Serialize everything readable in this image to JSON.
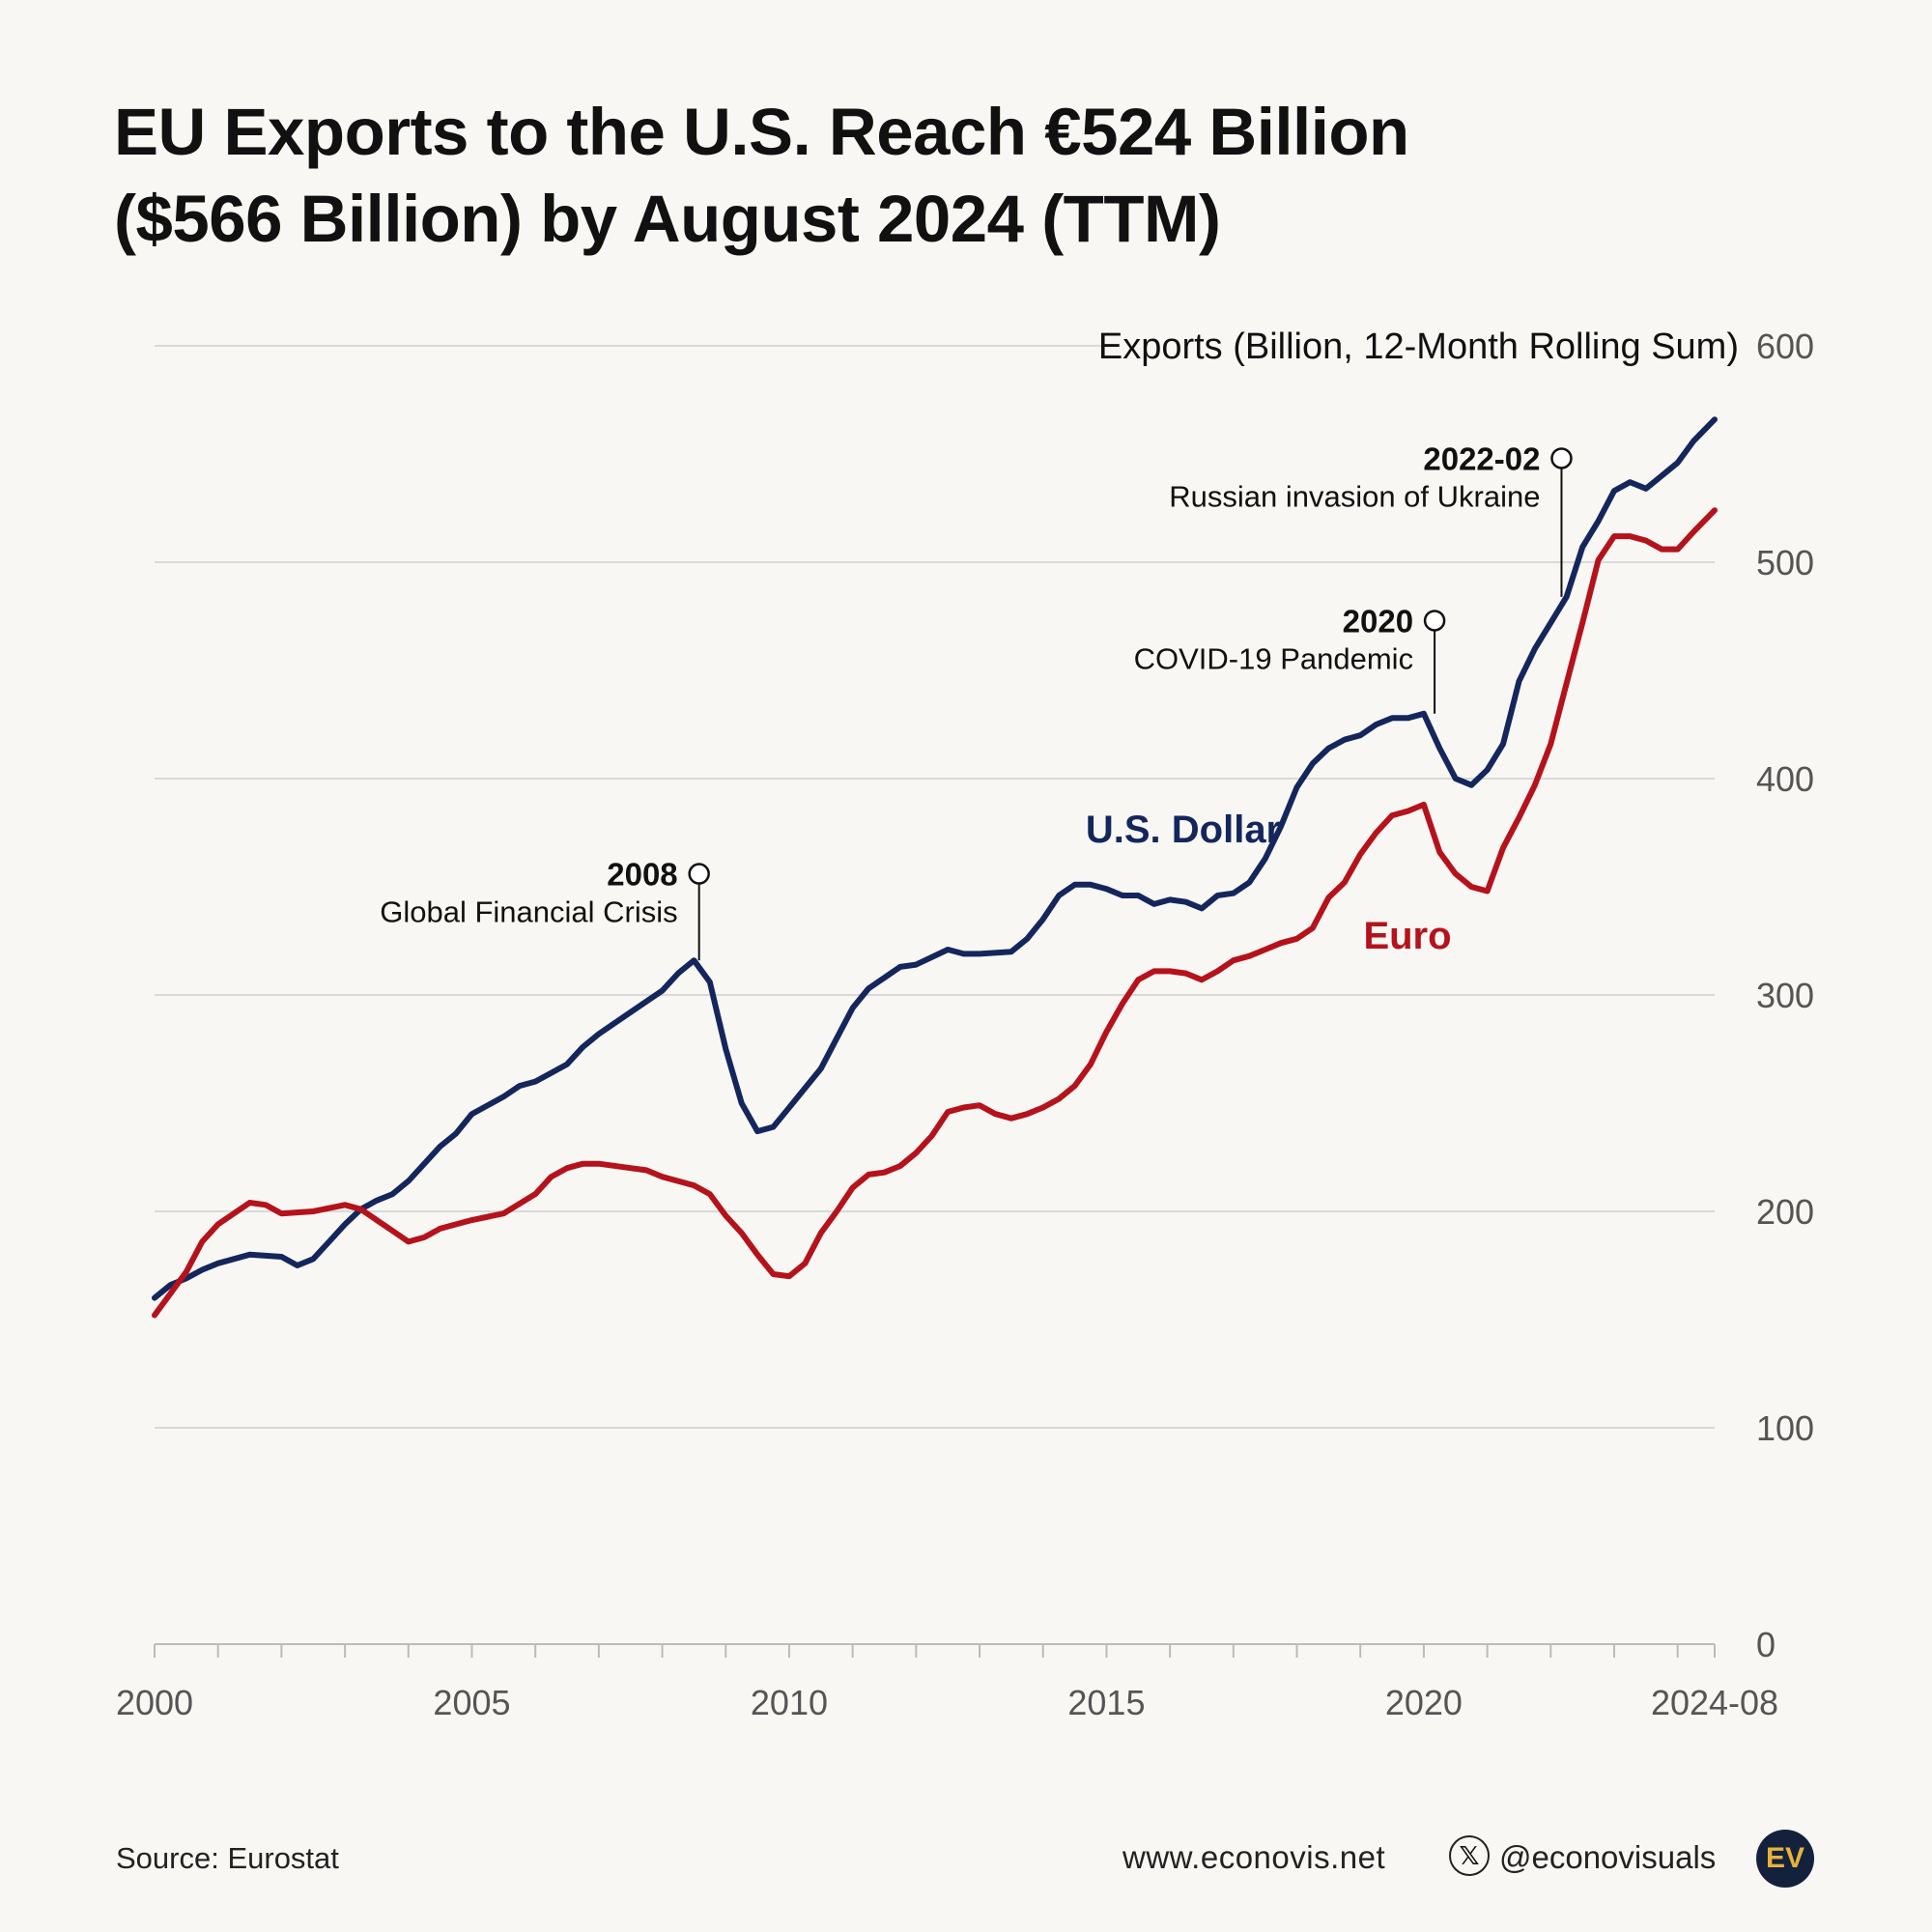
{
  "title_lines": [
    "EU Exports to the U.S. Reach €524 Billion",
    "($566 Billion) by August 2024 (TTM)"
  ],
  "footer": {
    "source": "Source: Eurostat",
    "website": "www.econovis.net",
    "x_icon": "x-logo-icon",
    "x_glyph": "𝕏",
    "handle": "@econovisuals",
    "logo_text": "EV"
  },
  "colors": {
    "usd": "#14265c",
    "eur": "#b5121b",
    "grid": "#d9d9d9",
    "axis": "#bbbbbb",
    "tick_label": "#555555",
    "background": "#f8f7f4",
    "logo_bg": "#14213d",
    "logo_fg": "#e8b23a"
  },
  "chart_data": {
    "type": "line",
    "ylabel": "Exports (Billion, 12-Month Rolling Sum)",
    "ylim": [
      0,
      600
    ],
    "yticks": [
      0,
      100,
      200,
      300,
      400,
      500,
      600
    ],
    "xlim": [
      2000.0,
      2024.583
    ],
    "xticks": [
      {
        "value": 2000,
        "label": "2000"
      },
      {
        "value": 2005,
        "label": "2005"
      },
      {
        "value": 2010,
        "label": "2010"
      },
      {
        "value": 2015,
        "label": "2015"
      },
      {
        "value": 2020,
        "label": "2020"
      },
      {
        "value": 2024.583,
        "label": "2024-08"
      }
    ],
    "minor_xticks": [
      2001,
      2002,
      2003,
      2004,
      2006,
      2007,
      2008,
      2009,
      2011,
      2012,
      2013,
      2014,
      2016,
      2017,
      2018,
      2019,
      2021,
      2022,
      2023,
      2024
    ],
    "series": [
      {
        "name": "U.S. Dollar",
        "key": "usd",
        "points": [
          [
            2000.0,
            160
          ],
          [
            2000.25,
            166
          ],
          [
            2000.5,
            169
          ],
          [
            2000.75,
            173
          ],
          [
            2001.0,
            176
          ],
          [
            2001.5,
            180
          ],
          [
            2002.0,
            179
          ],
          [
            2002.25,
            175
          ],
          [
            2002.5,
            178
          ],
          [
            2002.75,
            186
          ],
          [
            2003.0,
            194
          ],
          [
            2003.25,
            201
          ],
          [
            2003.5,
            205
          ],
          [
            2003.75,
            208
          ],
          [
            2004.0,
            214
          ],
          [
            2004.5,
            230
          ],
          [
            2004.75,
            236
          ],
          [
            2005.0,
            245
          ],
          [
            2005.5,
            253
          ],
          [
            2005.75,
            258
          ],
          [
            2006.0,
            260
          ],
          [
            2006.5,
            268
          ],
          [
            2006.75,
            276
          ],
          [
            2007.0,
            282
          ],
          [
            2007.5,
            292
          ],
          [
            2008.0,
            302
          ],
          [
            2008.25,
            310
          ],
          [
            2008.5,
            316
          ],
          [
            2008.75,
            306
          ],
          [
            2009.0,
            275
          ],
          [
            2009.25,
            250
          ],
          [
            2009.5,
            237
          ],
          [
            2009.75,
            239
          ],
          [
            2010.0,
            248
          ],
          [
            2010.5,
            266
          ],
          [
            2010.75,
            280
          ],
          [
            2011.0,
            294
          ],
          [
            2011.25,
            303
          ],
          [
            2011.5,
            308
          ],
          [
            2011.75,
            313
          ],
          [
            2012.0,
            314
          ],
          [
            2012.5,
            321
          ],
          [
            2012.75,
            319
          ],
          [
            2013.0,
            319
          ],
          [
            2013.5,
            320
          ],
          [
            2013.75,
            326
          ],
          [
            2014.0,
            335
          ],
          [
            2014.25,
            346
          ],
          [
            2014.5,
            351
          ],
          [
            2014.75,
            351
          ],
          [
            2015.0,
            349
          ],
          [
            2015.25,
            346
          ],
          [
            2015.5,
            346
          ],
          [
            2015.75,
            342
          ],
          [
            2016.0,
            344
          ],
          [
            2016.25,
            343
          ],
          [
            2016.5,
            340
          ],
          [
            2016.75,
            346
          ],
          [
            2017.0,
            347
          ],
          [
            2017.25,
            352
          ],
          [
            2017.5,
            363
          ],
          [
            2017.75,
            378
          ],
          [
            2018.0,
            396
          ],
          [
            2018.25,
            407
          ],
          [
            2018.5,
            414
          ],
          [
            2018.75,
            418
          ],
          [
            2019.0,
            420
          ],
          [
            2019.25,
            425
          ],
          [
            2019.5,
            428
          ],
          [
            2019.75,
            428
          ],
          [
            2020.0,
            430
          ],
          [
            2020.25,
            414
          ],
          [
            2020.5,
            400
          ],
          [
            2020.75,
            397
          ],
          [
            2021.0,
            404
          ],
          [
            2021.25,
            416
          ],
          [
            2021.5,
            445
          ],
          [
            2021.75,
            460
          ],
          [
            2022.0,
            472
          ],
          [
            2022.25,
            484
          ],
          [
            2022.5,
            507
          ],
          [
            2022.75,
            519
          ],
          [
            2023.0,
            533
          ],
          [
            2023.25,
            537
          ],
          [
            2023.5,
            534
          ],
          [
            2023.75,
            540
          ],
          [
            2024.0,
            546
          ],
          [
            2024.25,
            556
          ],
          [
            2024.583,
            566
          ]
        ]
      },
      {
        "name": "Euro",
        "key": "eur",
        "points": [
          [
            2000.0,
            152
          ],
          [
            2000.25,
            162
          ],
          [
            2000.5,
            172
          ],
          [
            2000.75,
            186
          ],
          [
            2001.0,
            194
          ],
          [
            2001.25,
            199
          ],
          [
            2001.5,
            204
          ],
          [
            2001.75,
            203
          ],
          [
            2002.0,
            199
          ],
          [
            2002.5,
            200
          ],
          [
            2003.0,
            203
          ],
          [
            2003.25,
            201
          ],
          [
            2003.5,
            196
          ],
          [
            2003.75,
            191
          ],
          [
            2004.0,
            186
          ],
          [
            2004.25,
            188
          ],
          [
            2004.5,
            192
          ],
          [
            2004.75,
            194
          ],
          [
            2005.0,
            196
          ],
          [
            2005.5,
            199
          ],
          [
            2006.0,
            208
          ],
          [
            2006.25,
            216
          ],
          [
            2006.5,
            220
          ],
          [
            2006.75,
            222
          ],
          [
            2007.0,
            222
          ],
          [
            2007.5,
            220
          ],
          [
            2007.75,
            219
          ],
          [
            2008.0,
            216
          ],
          [
            2008.5,
            212
          ],
          [
            2008.75,
            208
          ],
          [
            2009.0,
            198
          ],
          [
            2009.25,
            190
          ],
          [
            2009.5,
            180
          ],
          [
            2009.75,
            171
          ],
          [
            2010.0,
            170
          ],
          [
            2010.25,
            176
          ],
          [
            2010.5,
            190
          ],
          [
            2010.75,
            200
          ],
          [
            2011.0,
            211
          ],
          [
            2011.25,
            217
          ],
          [
            2011.5,
            218
          ],
          [
            2011.75,
            221
          ],
          [
            2012.0,
            227
          ],
          [
            2012.25,
            235
          ],
          [
            2012.5,
            246
          ],
          [
            2012.75,
            248
          ],
          [
            2013.0,
            249
          ],
          [
            2013.25,
            245
          ],
          [
            2013.5,
            243
          ],
          [
            2013.75,
            245
          ],
          [
            2014.0,
            248
          ],
          [
            2014.25,
            252
          ],
          [
            2014.5,
            258
          ],
          [
            2014.75,
            268
          ],
          [
            2015.0,
            283
          ],
          [
            2015.25,
            296
          ],
          [
            2015.5,
            307
          ],
          [
            2015.75,
            311
          ],
          [
            2016.0,
            311
          ],
          [
            2016.25,
            310
          ],
          [
            2016.5,
            307
          ],
          [
            2016.75,
            311
          ],
          [
            2017.0,
            316
          ],
          [
            2017.25,
            318
          ],
          [
            2017.5,
            321
          ],
          [
            2017.75,
            324
          ],
          [
            2018.0,
            326
          ],
          [
            2018.25,
            331
          ],
          [
            2018.5,
            345
          ],
          [
            2018.75,
            352
          ],
          [
            2019.0,
            365
          ],
          [
            2019.25,
            375
          ],
          [
            2019.5,
            383
          ],
          [
            2019.75,
            385
          ],
          [
            2020.0,
            388
          ],
          [
            2020.25,
            366
          ],
          [
            2020.5,
            356
          ],
          [
            2020.75,
            350
          ],
          [
            2021.0,
            348
          ],
          [
            2021.25,
            368
          ],
          [
            2021.5,
            382
          ],
          [
            2021.75,
            397
          ],
          [
            2022.0,
            416
          ],
          [
            2022.25,
            444
          ],
          [
            2022.5,
            472
          ],
          [
            2022.75,
            501
          ],
          [
            2023.0,
            512
          ],
          [
            2023.25,
            512
          ],
          [
            2023.5,
            510
          ],
          [
            2023.75,
            506
          ],
          [
            2024.0,
            506
          ],
          [
            2024.25,
            514
          ],
          [
            2024.583,
            524
          ]
        ]
      }
    ],
    "series_labels": {
      "usd": "U.S. Dollar",
      "eur": "Euro"
    },
    "annotations": [
      {
        "x": 2008.58,
        "y": 316,
        "marker_y": 356,
        "label_bold": "2008",
        "label": "Global Financial Crisis"
      },
      {
        "x": 2020.17,
        "y": 430,
        "marker_y": 473,
        "label_bold": "2020",
        "label": "COVID-19 Pandemic"
      },
      {
        "x": 2022.17,
        "y": 484,
        "marker_y": 548,
        "label_bold": "2022-02",
        "label": "Russian invasion of Ukraine"
      }
    ]
  }
}
